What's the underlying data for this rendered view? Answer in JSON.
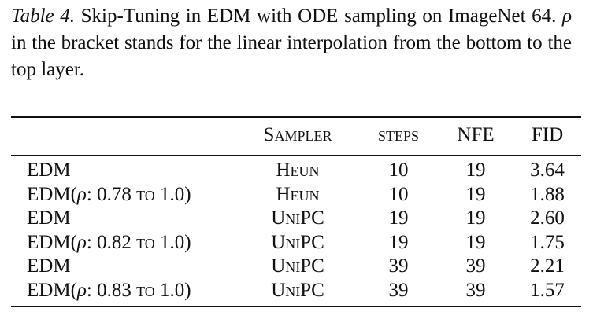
{
  "caption": {
    "label": "Table 4.",
    "text_before_rho": " Skip-Tuning in EDM with ODE sampling on ImageNet 64.  ",
    "rho": "ρ",
    "text_after_rho": " in the bracket stands for the linear interpolation from the bottom to the top layer."
  },
  "table": {
    "headers": {
      "method": "",
      "sampler": "Sampler",
      "steps": "steps",
      "nfe": "NFE",
      "fid": "FID"
    },
    "rows": [
      {
        "method_base": "EDM",
        "method_open": "",
        "rho": "",
        "range_from": "",
        "to": "",
        "range_to": "",
        "method_close": "",
        "sampler": "Heun",
        "steps": "10",
        "nfe": "19",
        "fid": "3.64"
      },
      {
        "method_base": "EDM",
        "method_open": "(",
        "rho": "ρ",
        "range_from": ": 0.78 ",
        "to": "to",
        "range_to": " 1.0",
        "method_close": ")",
        "sampler": "Heun",
        "steps": "10",
        "nfe": "19",
        "fid": "1.88"
      },
      {
        "method_base": "EDM",
        "method_open": "",
        "rho": "",
        "range_from": "",
        "to": "",
        "range_to": "",
        "method_close": "",
        "sampler": "UniPC",
        "steps": "19",
        "nfe": "19",
        "fid": "2.60"
      },
      {
        "method_base": "EDM",
        "method_open": "(",
        "rho": "ρ",
        "range_from": ": 0.82 ",
        "to": "to",
        "range_to": " 1.0",
        "method_close": ")",
        "sampler": "UniPC",
        "steps": "19",
        "nfe": "19",
        "fid": "1.75"
      },
      {
        "method_base": "EDM",
        "method_open": "",
        "rho": "",
        "range_from": "",
        "to": "",
        "range_to": "",
        "method_close": "",
        "sampler": "UniPC",
        "steps": "39",
        "nfe": "39",
        "fid": "2.21"
      },
      {
        "method_base": "EDM",
        "method_open": "(",
        "rho": "ρ",
        "range_from": ": 0.83 ",
        "to": "to",
        "range_to": " 1.0",
        "method_close": ")",
        "sampler": "UniPC",
        "steps": "39",
        "nfe": "39",
        "fid": "1.57"
      }
    ]
  }
}
